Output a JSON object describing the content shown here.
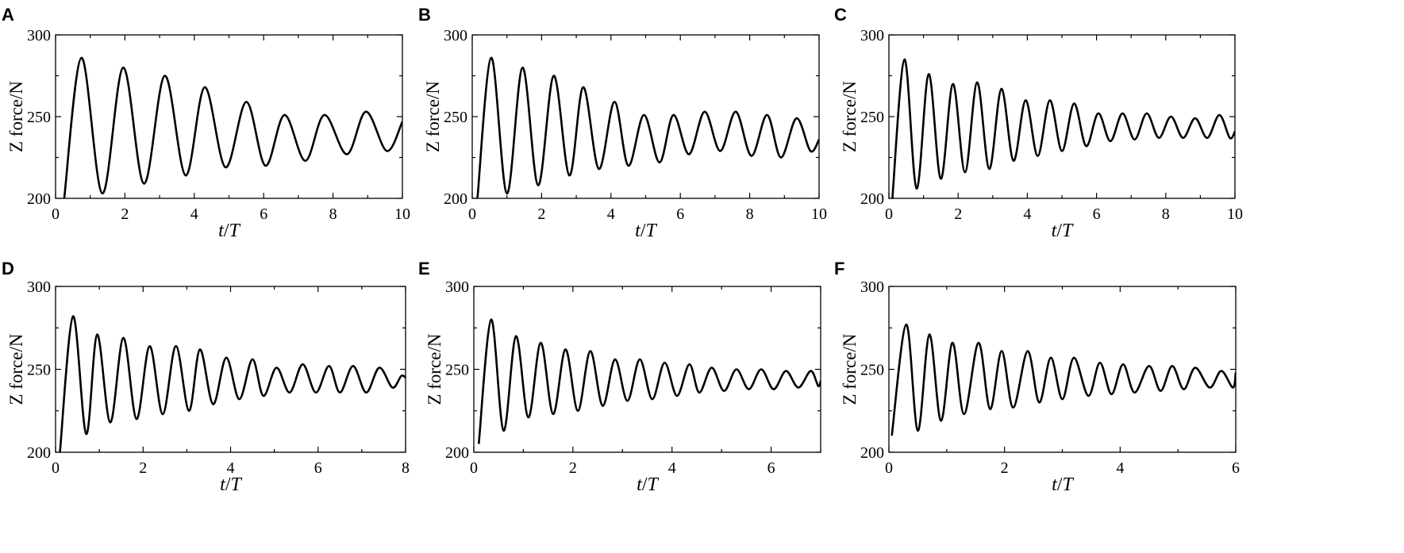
{
  "chart_data": [
    {
      "type": "line",
      "panel_label": "A",
      "xlabel_italic_1": "t",
      "xlabel_slash": "/",
      "xlabel_italic_2": "T",
      "ylabel": "Z force/N",
      "xlim": [
        0,
        10
      ],
      "ylim": [
        200,
        300
      ],
      "xticks": [
        0,
        2,
        4,
        6,
        8,
        10
      ],
      "yticks": [
        200,
        250,
        300
      ],
      "series": [
        {
          "x": [
            0.25,
            0.75,
            1.35,
            1.95,
            2.55,
            3.15,
            3.75,
            4.3,
            4.9,
            5.5,
            6.05,
            6.6,
            7.2,
            7.75,
            8.4,
            8.95,
            9.55,
            10.0
          ],
          "y": [
            200,
            286,
            203,
            280,
            209,
            275,
            214,
            268,
            219,
            259,
            220,
            251,
            223,
            251,
            227,
            253,
            229,
            247
          ]
        }
      ]
    },
    {
      "type": "line",
      "panel_label": "B",
      "xlabel_italic_1": "t",
      "xlabel_slash": "/",
      "xlabel_italic_2": "T",
      "ylabel": "Z force/N",
      "xlim": [
        0,
        10
      ],
      "ylim": [
        200,
        300
      ],
      "xticks": [
        0,
        2,
        4,
        6,
        8,
        10
      ],
      "yticks": [
        200,
        250,
        300
      ],
      "series": [
        {
          "x": [
            0.15,
            0.55,
            1.0,
            1.45,
            1.9,
            2.35,
            2.8,
            3.2,
            3.65,
            4.1,
            4.5,
            4.95,
            5.4,
            5.8,
            6.25,
            6.7,
            7.15,
            7.6,
            8.05,
            8.5,
            8.9,
            9.35,
            9.75,
            10.0
          ],
          "y": [
            200,
            286,
            203,
            280,
            208,
            275,
            214,
            268,
            218,
            259,
            220,
            251,
            222,
            251,
            227,
            253,
            229,
            253,
            226,
            251,
            225,
            249,
            229,
            236
          ]
        }
      ]
    },
    {
      "type": "line",
      "panel_label": "C",
      "xlabel_italic_1": "t",
      "xlabel_slash": "/",
      "xlabel_italic_2": "T",
      "ylabel": "Z force/N",
      "xlim": [
        0,
        10
      ],
      "ylim": [
        200,
        300
      ],
      "xticks": [
        0,
        2,
        4,
        6,
        8,
        10
      ],
      "yticks": [
        200,
        250,
        300
      ],
      "series": [
        {
          "x": [
            0.1,
            0.45,
            0.8,
            1.15,
            1.5,
            1.85,
            2.2,
            2.55,
            2.9,
            3.25,
            3.6,
            3.95,
            4.3,
            4.65,
            5.0,
            5.35,
            5.7,
            6.05,
            6.4,
            6.75,
            7.1,
            7.45,
            7.8,
            8.15,
            8.5,
            8.85,
            9.2,
            9.55,
            9.85,
            10.0
          ],
          "y": [
            200,
            285,
            206,
            276,
            212,
            270,
            216,
            271,
            218,
            267,
            223,
            260,
            226,
            260,
            229,
            258,
            232,
            252,
            235,
            252,
            236,
            252,
            237,
            250,
            237,
            249,
            237,
            251,
            237,
            241
          ]
        }
      ]
    },
    {
      "type": "line",
      "panel_label": "D",
      "xlabel_italic_1": "t",
      "xlabel_slash": "/",
      "xlabel_italic_2": "T",
      "ylabel": "Z force/N",
      "xlim": [
        0,
        8
      ],
      "ylim": [
        200,
        300
      ],
      "xticks": [
        0,
        2,
        4,
        6,
        8
      ],
      "yticks": [
        200,
        250,
        300
      ],
      "series": [
        {
          "x": [
            0.1,
            0.4,
            0.7,
            0.95,
            1.25,
            1.55,
            1.85,
            2.15,
            2.45,
            2.75,
            3.05,
            3.3,
            3.6,
            3.9,
            4.2,
            4.5,
            4.75,
            5.05,
            5.35,
            5.65,
            5.95,
            6.25,
            6.5,
            6.8,
            7.1,
            7.4,
            7.7,
            7.9,
            8.0
          ],
          "y": [
            200,
            282,
            211,
            271,
            218,
            269,
            220,
            264,
            223,
            264,
            225,
            262,
            229,
            257,
            232,
            256,
            234,
            251,
            236,
            253,
            236,
            252,
            236,
            252,
            236,
            251,
            239,
            246,
            245
          ]
        }
      ]
    },
    {
      "type": "line",
      "panel_label": "E",
      "xlabel_italic_1": "t",
      "xlabel_slash": "/",
      "xlabel_italic_2": "T",
      "ylabel": "Z force/N",
      "xlim": [
        0,
        7
      ],
      "ylim": [
        200,
        300
      ],
      "xticks": [
        0,
        2,
        4,
        6
      ],
      "yticks": [
        200,
        250,
        300
      ],
      "series": [
        {
          "x": [
            0.1,
            0.35,
            0.6,
            0.85,
            1.1,
            1.35,
            1.6,
            1.85,
            2.1,
            2.35,
            2.6,
            2.85,
            3.1,
            3.35,
            3.6,
            3.85,
            4.1,
            4.35,
            4.55,
            4.8,
            5.05,
            5.3,
            5.55,
            5.8,
            6.05,
            6.3,
            6.55,
            6.8,
            6.95,
            7.0
          ],
          "y": [
            205,
            280,
            213,
            270,
            221,
            266,
            223,
            262,
            225,
            261,
            228,
            256,
            231,
            256,
            232,
            254,
            234,
            253,
            236,
            251,
            237,
            250,
            238,
            250,
            238,
            249,
            239,
            249,
            240,
            243
          ]
        }
      ]
    },
    {
      "type": "line",
      "panel_label": "F",
      "xlabel_italic_1": "t",
      "xlabel_slash": "/",
      "xlabel_italic_2": "T",
      "ylabel": "Z force/N",
      "xlim": [
        0,
        6
      ],
      "ylim": [
        200,
        300
      ],
      "xticks": [
        0,
        2,
        4,
        6
      ],
      "yticks": [
        200,
        250,
        300
      ],
      "series": [
        {
          "x": [
            0.05,
            0.3,
            0.5,
            0.7,
            0.9,
            1.1,
            1.3,
            1.55,
            1.75,
            1.95,
            2.15,
            2.4,
            2.6,
            2.8,
            3.0,
            3.2,
            3.45,
            3.65,
            3.85,
            4.05,
            4.25,
            4.5,
            4.7,
            4.9,
            5.1,
            5.3,
            5.55,
            5.75,
            5.95,
            6.0
          ],
          "y": [
            210,
            277,
            213,
            271,
            219,
            266,
            223,
            266,
            226,
            261,
            227,
            261,
            230,
            257,
            232,
            257,
            234,
            254,
            235,
            253,
            236,
            252,
            237,
            252,
            238,
            251,
            239,
            249,
            239,
            248
          ]
        }
      ]
    }
  ]
}
